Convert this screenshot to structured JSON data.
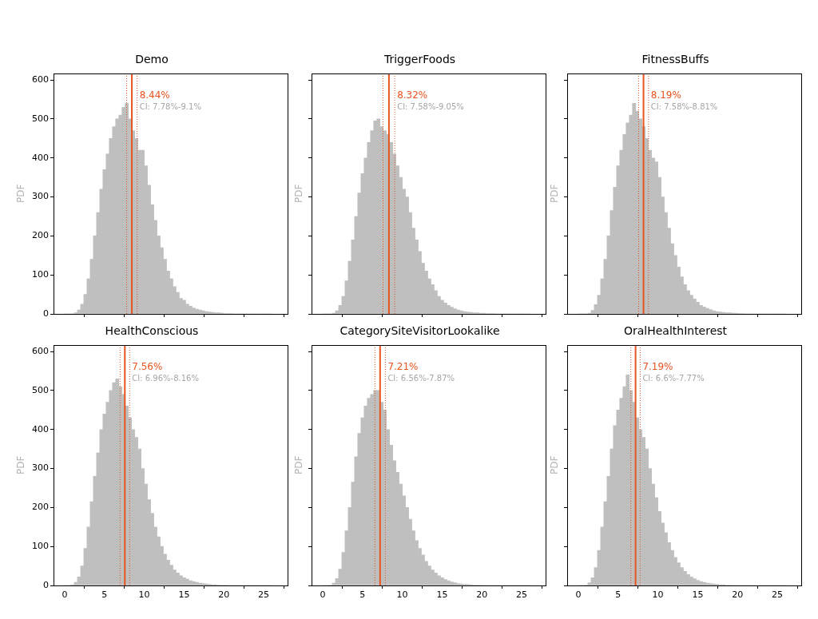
{
  "chart_data": [
    {
      "type": "histogram",
      "title": "Demo",
      "ylabel": "PDF",
      "color": "#bfbfbf",
      "grid": false,
      "tick_labels": "y",
      "xlim": [
        -1.4,
        28
      ],
      "ylim": [
        0,
        617
      ],
      "xticks": [
        0,
        5,
        10,
        15,
        20,
        25
      ],
      "yticks": [
        0,
        100,
        200,
        300,
        400,
        500,
        600
      ],
      "bins": [
        0,
        0.4,
        0.8,
        1.2,
        1.6,
        2,
        2.4,
        2.8,
        3.2,
        3.6,
        4,
        4.4,
        4.8,
        5.2,
        5.6,
        6,
        6.4,
        6.8,
        7.2,
        7.6,
        8,
        8.4,
        8.8,
        9.2,
        9.6,
        10,
        10.4,
        10.8,
        11.2,
        11.6,
        12,
        12.4,
        12.8,
        13.2,
        13.6,
        14,
        14.4,
        14.8,
        15.2,
        15.6,
        16,
        16.4,
        16.8,
        17.2,
        17.6,
        18,
        18.4,
        18.8,
        19.2,
        19.6,
        20,
        20.4,
        20.8,
        21.2,
        21.6,
        22,
        22.4,
        22.8,
        23.2,
        23.6,
        24,
        24.4,
        24.8,
        25.2,
        25.6,
        26
      ],
      "counts": [
        0,
        0,
        0,
        3,
        10,
        25,
        50,
        90,
        140,
        200,
        260,
        320,
        370,
        410,
        450,
        480,
        500,
        510,
        530,
        540,
        500,
        470,
        450,
        420,
        420,
        380,
        330,
        280,
        240,
        200,
        170,
        140,
        110,
        90,
        70,
        55,
        40,
        35,
        25,
        20,
        15,
        12,
        10,
        8,
        6,
        5,
        4,
        3,
        3,
        2,
        1,
        1,
        1,
        0,
        0,
        0,
        0,
        0,
        0,
        0,
        0,
        0,
        0,
        0,
        0
      ],
      "mean": 8.44,
      "mean_label": "8.44%",
      "ci": [
        7.78,
        9.1
      ],
      "ci_label": "CI: 7.78%-9.1%"
    },
    {
      "type": "histogram",
      "title": "TriggerFoods",
      "ylabel": "PDF",
      "color": "#bfbfbf",
      "grid": false,
      "tick_labels": false,
      "xlim": [
        -1.4,
        28
      ],
      "ylim": [
        0,
        617
      ],
      "xticks": [
        0,
        5,
        10,
        15,
        20,
        25
      ],
      "yticks": [
        0,
        100,
        200,
        300,
        400,
        500,
        600
      ],
      "bins": [
        0,
        0.4,
        0.8,
        1.2,
        1.6,
        2,
        2.4,
        2.8,
        3.2,
        3.6,
        4,
        4.4,
        4.8,
        5.2,
        5.6,
        6,
        6.4,
        6.8,
        7.2,
        7.6,
        8,
        8.4,
        8.8,
        9.2,
        9.6,
        10,
        10.4,
        10.8,
        11.2,
        11.6,
        12,
        12.4,
        12.8,
        13.2,
        13.6,
        14,
        14.4,
        14.8,
        15.2,
        15.6,
        16,
        16.4,
        16.8,
        17.2,
        17.6,
        18,
        18.4,
        18.8,
        19.2,
        19.6,
        20,
        20.4,
        20.8,
        21.2,
        21.6,
        22,
        22.4,
        22.8,
        23.2,
        23.6,
        24,
        24.4,
        24.8,
        25.2,
        25.6,
        26
      ],
      "counts": [
        0,
        0,
        0,
        2,
        8,
        22,
        45,
        85,
        135,
        190,
        250,
        310,
        360,
        400,
        440,
        470,
        495,
        500,
        480,
        470,
        460,
        440,
        410,
        380,
        350,
        320,
        300,
        260,
        220,
        190,
        160,
        130,
        110,
        90,
        75,
        60,
        45,
        35,
        28,
        22,
        17,
        13,
        10,
        8,
        6,
        5,
        4,
        3,
        3,
        2,
        2,
        1,
        1,
        1,
        0,
        0,
        0,
        0,
        0,
        0,
        0,
        0,
        0,
        0,
        0
      ],
      "mean": 8.32,
      "mean_label": "8.32%",
      "ci": [
        7.58,
        9.05
      ],
      "ci_label": "CI: 7.58%-9.05%"
    },
    {
      "type": "histogram",
      "title": "FitnessBuffs",
      "ylabel": "PDF",
      "color": "#bfbfbf",
      "grid": false,
      "tick_labels": false,
      "xlim": [
        -1.4,
        28
      ],
      "ylim": [
        0,
        617
      ],
      "xticks": [
        0,
        5,
        10,
        15,
        20,
        25
      ],
      "yticks": [
        0,
        100,
        200,
        300,
        400,
        500,
        600
      ],
      "bins": [
        0,
        0.4,
        0.8,
        1.2,
        1.6,
        2,
        2.4,
        2.8,
        3.2,
        3.6,
        4,
        4.4,
        4.8,
        5.2,
        5.6,
        6,
        6.4,
        6.8,
        7.2,
        7.6,
        8,
        8.4,
        8.8,
        9.2,
        9.6,
        10,
        10.4,
        10.8,
        11.2,
        11.6,
        12,
        12.4,
        12.8,
        13.2,
        13.6,
        14,
        14.4,
        14.8,
        15.2,
        15.6,
        16,
        16.4,
        16.8,
        17.2,
        17.6,
        18,
        18.4,
        18.8,
        19.2,
        19.6,
        20,
        20.4,
        20.8,
        21.2,
        21.6,
        22,
        22.4,
        22.8,
        23.2,
        23.6,
        24,
        24.4,
        24.8,
        25.2,
        25.6,
        26
      ],
      "counts": [
        0,
        0,
        0,
        2,
        9,
        24,
        48,
        90,
        140,
        200,
        265,
        325,
        380,
        420,
        460,
        490,
        510,
        540,
        520,
        500,
        480,
        450,
        420,
        400,
        390,
        350,
        300,
        260,
        220,
        180,
        150,
        120,
        95,
        75,
        60,
        48,
        38,
        30,
        22,
        18,
        14,
        11,
        8,
        6,
        5,
        4,
        3,
        3,
        2,
        2,
        1,
        1,
        0,
        0,
        0,
        0,
        0,
        0,
        0,
        0,
        0,
        0,
        0,
        0,
        0
      ],
      "mean": 8.19,
      "mean_label": "8.19%",
      "ci": [
        7.58,
        8.81
      ],
      "ci_label": "CI: 7.58%-8.81%"
    },
    {
      "type": "histogram",
      "title": "HealthConscious",
      "ylabel": "PDF",
      "color": "#bfbfbf",
      "grid": false,
      "xlim": [
        -1.4,
        28
      ],
      "ylim": [
        0,
        617
      ],
      "xticks": [
        0,
        5,
        10,
        15,
        20,
        25
      ],
      "yticks": [
        0,
        100,
        200,
        300,
        400,
        500,
        600
      ],
      "bins": [
        0,
        0.4,
        0.8,
        1.2,
        1.6,
        2,
        2.4,
        2.8,
        3.2,
        3.6,
        4,
        4.4,
        4.8,
        5.2,
        5.6,
        6,
        6.4,
        6.8,
        7.2,
        7.6,
        8,
        8.4,
        8.8,
        9.2,
        9.6,
        10,
        10.4,
        10.8,
        11.2,
        11.6,
        12,
        12.4,
        12.8,
        13.2,
        13.6,
        14,
        14.4,
        14.8,
        15.2,
        15.6,
        16,
        16.4,
        16.8,
        17.2,
        17.6,
        18,
        18.4,
        18.8,
        19.2,
        19.6,
        20,
        20.4,
        20.8,
        21.2,
        21.6,
        22,
        22.4,
        22.8,
        23.2,
        23.6,
        24,
        24.4,
        24.8,
        25.2,
        25.6,
        26
      ],
      "counts": [
        0,
        0,
        2,
        8,
        22,
        50,
        95,
        150,
        215,
        280,
        340,
        400,
        440,
        470,
        500,
        520,
        530,
        510,
        490,
        460,
        430,
        400,
        380,
        350,
        300,
        260,
        220,
        185,
        150,
        125,
        100,
        80,
        65,
        52,
        40,
        32,
        25,
        20,
        16,
        12,
        10,
        8,
        6,
        5,
        4,
        3,
        2,
        2,
        1,
        1,
        1,
        0,
        0,
        0,
        0,
        0,
        0,
        0,
        0,
        0,
        0,
        0,
        0,
        0,
        0
      ],
      "mean": 7.56,
      "mean_label": "7.56%",
      "ci": [
        6.96,
        8.16
      ],
      "ci_label": "CI: 6.96%-8.16%"
    },
    {
      "type": "histogram",
      "title": "CategorySiteVisitorLookalike",
      "ylabel": "PDF",
      "color": "#bfbfbf",
      "grid": false,
      "tick_labels": "x",
      "xlim": [
        -1.4,
        28
      ],
      "ylim": [
        0,
        617
      ],
      "xticks": [
        0,
        5,
        10,
        15,
        20,
        25
      ],
      "yticks": [
        0,
        100,
        200,
        300,
        400,
        500,
        600
      ],
      "bins": [
        0,
        0.4,
        0.8,
        1.2,
        1.6,
        2,
        2.4,
        2.8,
        3.2,
        3.6,
        4,
        4.4,
        4.8,
        5.2,
        5.6,
        6,
        6.4,
        6.8,
        7.2,
        7.6,
        8,
        8.4,
        8.8,
        9.2,
        9.6,
        10,
        10.4,
        10.8,
        11.2,
        11.6,
        12,
        12.4,
        12.8,
        13.2,
        13.6,
        14,
        14.4,
        14.8,
        15.2,
        15.6,
        16,
        16.4,
        16.8,
        17.2,
        17.6,
        18,
        18.4,
        18.8,
        19.2,
        19.6,
        20,
        20.4,
        20.8,
        21.2,
        21.6,
        22,
        22.4,
        22.8,
        23.2,
        23.6,
        24,
        24.4,
        24.8,
        25.2,
        25.6,
        26
      ],
      "counts": [
        0,
        0,
        1,
        6,
        18,
        42,
        85,
        140,
        200,
        265,
        330,
        390,
        430,
        460,
        480,
        490,
        500,
        500,
        470,
        450,
        400,
        360,
        320,
        290,
        260,
        230,
        200,
        170,
        140,
        115,
        95,
        78,
        62,
        50,
        40,
        32,
        25,
        20,
        15,
        12,
        9,
        7,
        5,
        4,
        3,
        3,
        2,
        1,
        1,
        1,
        0,
        0,
        0,
        0,
        0,
        0,
        0,
        0,
        0,
        0,
        0,
        0,
        0,
        0,
        0
      ],
      "mean": 7.21,
      "mean_label": "7.21%",
      "ci": [
        6.56,
        7.87
      ],
      "ci_label": "CI: 6.56%-7.87%"
    },
    {
      "type": "histogram",
      "title": "OralHealthInterest",
      "ylabel": "PDF",
      "color": "#bfbfbf",
      "grid": false,
      "tick_labels": "x",
      "xlim": [
        -1.4,
        28
      ],
      "ylim": [
        0,
        617
      ],
      "xticks": [
        0,
        5,
        10,
        15,
        20,
        25
      ],
      "yticks": [
        0,
        100,
        200,
        300,
        400,
        500,
        600
      ],
      "bins": [
        0,
        0.4,
        0.8,
        1.2,
        1.6,
        2,
        2.4,
        2.8,
        3.2,
        3.6,
        4,
        4.4,
        4.8,
        5.2,
        5.6,
        6,
        6.4,
        6.8,
        7.2,
        7.6,
        8,
        8.4,
        8.8,
        9.2,
        9.6,
        10,
        10.4,
        10.8,
        11.2,
        11.6,
        12,
        12.4,
        12.8,
        13.2,
        13.6,
        14,
        14.4,
        14.8,
        15.2,
        15.6,
        16,
        16.4,
        16.8,
        17.2,
        17.6,
        18,
        18.4,
        18.8,
        19.2,
        19.6,
        20,
        20.4,
        20.8,
        21.2,
        21.6,
        22,
        22.4,
        22.8,
        23.2,
        23.6,
        24,
        24.4,
        24.8,
        25.2,
        25.6,
        26
      ],
      "counts": [
        0,
        0,
        1,
        7,
        20,
        46,
        90,
        150,
        215,
        280,
        350,
        410,
        450,
        480,
        510,
        540,
        500,
        470,
        430,
        400,
        380,
        350,
        300,
        260,
        225,
        190,
        160,
        135,
        110,
        90,
        72,
        58,
        46,
        36,
        28,
        22,
        17,
        13,
        10,
        8,
        6,
        5,
        4,
        3,
        2,
        2,
        1,
        1,
        0,
        0,
        0,
        0,
        0,
        0,
        0,
        0,
        0,
        0,
        0,
        0,
        0,
        0,
        0,
        0,
        0
      ],
      "mean": 7.19,
      "mean_label": "7.19%",
      "ci": [
        6.6,
        7.77
      ],
      "ci_label": "CI: 6.6%-7.77%"
    }
  ]
}
